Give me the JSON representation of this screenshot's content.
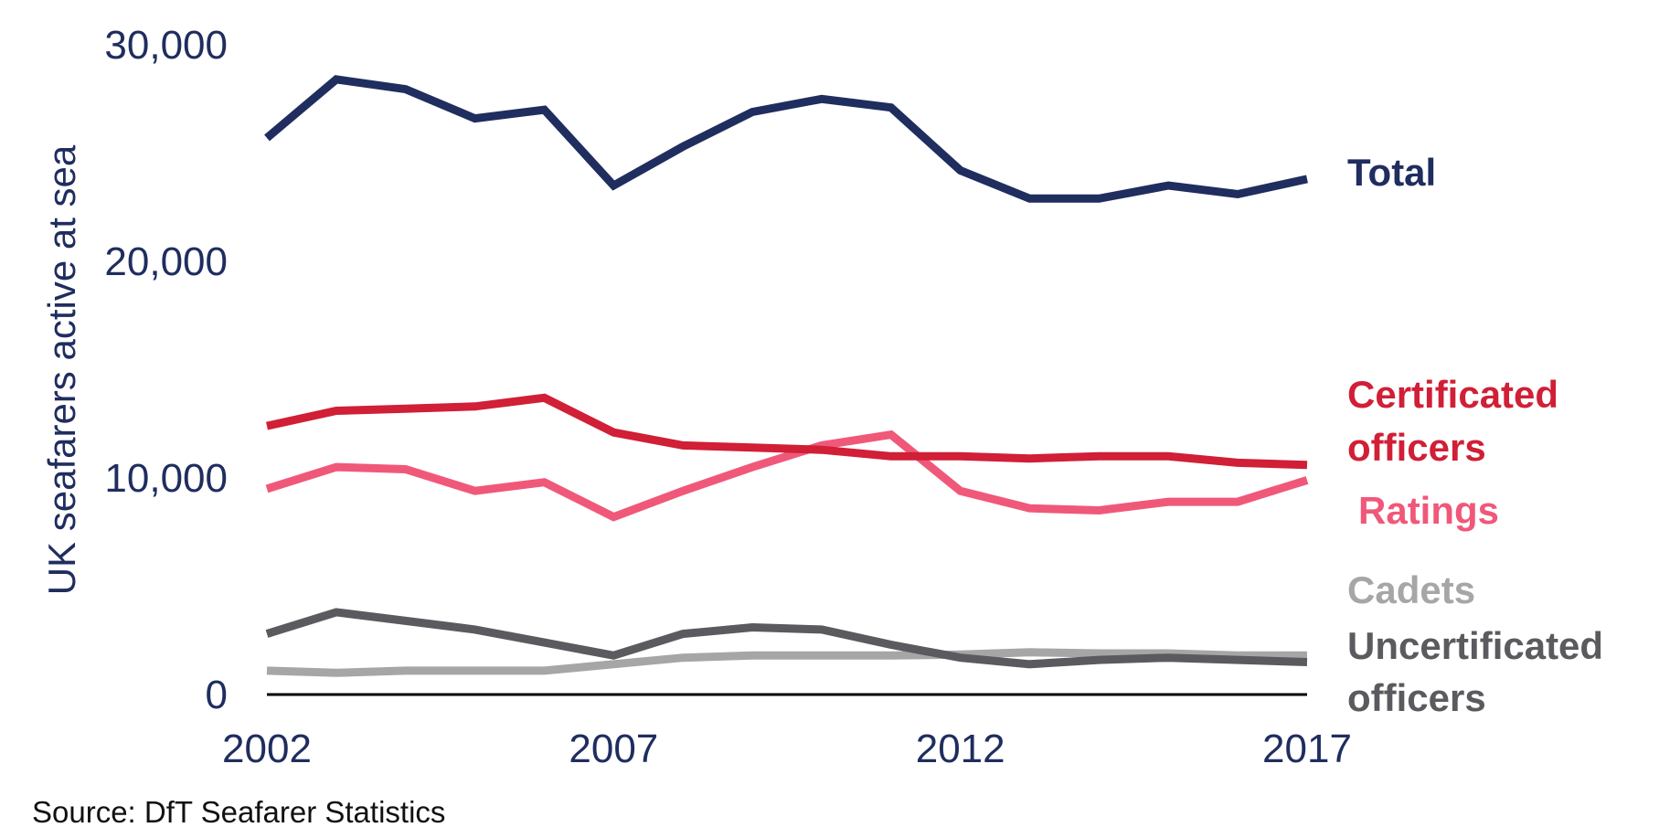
{
  "chart_data": {
    "type": "line",
    "title": "",
    "xlabel": "",
    "ylabel": "UK seafarers active at sea",
    "ylim": [
      0,
      30000
    ],
    "xlim": [
      2002,
      2017
    ],
    "grid": false,
    "legend": "inline-right",
    "x": [
      2002,
      2003,
      2004,
      2005,
      2006,
      2007,
      2008,
      2009,
      2010,
      2011,
      2012,
      2013,
      2014,
      2015,
      2016,
      2017
    ],
    "x_ticks": [
      2002,
      2007,
      2012,
      2017
    ],
    "x_tick_labels": [
      "2002",
      "2007",
      "2012",
      "2017"
    ],
    "y_ticks": [
      0,
      10000,
      20000,
      30000
    ],
    "y_tick_labels": [
      "0",
      "10,000",
      "20,000",
      "30,000"
    ],
    "series": [
      {
        "name": "Total",
        "label_lines": [
          "Total"
        ],
        "color": "#1f2d5f",
        "values": [
          25700,
          28400,
          27950,
          26600,
          27000,
          23500,
          25300,
          26900,
          27500,
          27100,
          24200,
          22900,
          22900,
          23500,
          23100,
          23800
        ]
      },
      {
        "name": "Certificated officers",
        "label_lines": [
          "Certificated",
          "officers"
        ],
        "color": "#d01f36",
        "values": [
          12400,
          13100,
          13200,
          13300,
          13700,
          12100,
          11500,
          11400,
          11300,
          11000,
          11000,
          10900,
          11000,
          11000,
          10700,
          10600
        ]
      },
      {
        "name": "Ratings",
        "label_lines": [
          "Ratings"
        ],
        "color": "#f0587a",
        "values": [
          9500,
          10500,
          10400,
          9400,
          9800,
          8200,
          9400,
          10500,
          11500,
          12000,
          9400,
          8600,
          8500,
          8900,
          8900,
          9900
        ]
      },
      {
        "name": "Cadets",
        "label_lines": [
          "Cadets"
        ],
        "color": "#a6a6a6",
        "values": [
          1100,
          1000,
          1100,
          1100,
          1100,
          1400,
          1700,
          1800,
          1800,
          1800,
          1850,
          1950,
          1900,
          1900,
          1800,
          1800
        ]
      },
      {
        "name": "Uncertificated officers",
        "label_lines": [
          "Uncertificated",
          "officers"
        ],
        "color": "#5a5a5f",
        "values": [
          2800,
          3800,
          3400,
          3000,
          2400,
          1800,
          2800,
          3100,
          3000,
          2300,
          1700,
          1400,
          1600,
          1700,
          1600,
          1500
        ]
      }
    ],
    "source": "Source: DfT Seafarer Statistics"
  }
}
